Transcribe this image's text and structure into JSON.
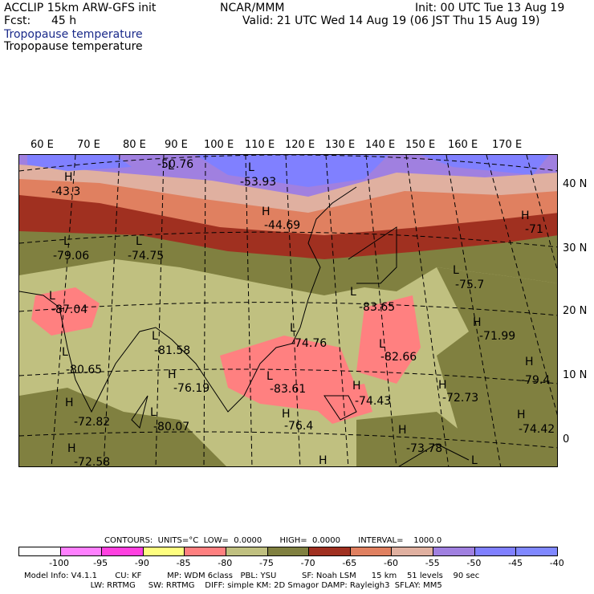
{
  "header": {
    "model": "ACCLIP 15km ARW-GFS init",
    "org": "NCAR/MMM",
    "init": "Init: 00 UTC Tue 13 Aug 19",
    "fcst_label": "Fcst:",
    "fcst_value": "45 h",
    "valid": "Valid: 21 UTC Wed 14 Aug 19 (06 JST Thu 15 Aug 19)",
    "field_title_1": "Tropopause temperature",
    "field_title_2": "Tropopause temperature"
  },
  "map": {
    "lon_labels": [
      "60 E",
      "70 E",
      "80 E",
      "90 E",
      "100 E",
      "110 E",
      "120 E",
      "130 E",
      "140 E",
      "150 E",
      "160 E",
      "170 E"
    ],
    "lat_labels": [
      "40 N",
      "30 N",
      "20 N",
      "10 N",
      "0"
    ],
    "markers": [
      {
        "type": "H",
        "value": "-43.3"
      },
      {
        "type": "L",
        "value": "-50.76"
      },
      {
        "type": "L",
        "value": "-53.93"
      },
      {
        "type": "H",
        "value": "-44.69"
      },
      {
        "type": "L",
        "value": "-79.06"
      },
      {
        "type": "L",
        "value": "-74.75"
      },
      {
        "type": "H",
        "value": "-71"
      },
      {
        "type": "L",
        "value": "-75.7"
      },
      {
        "type": "L",
        "value": "-87.04"
      },
      {
        "type": "L",
        "value": "-83.65"
      },
      {
        "type": "H",
        "value": "-71.99"
      },
      {
        "type": "L",
        "value": "-81.58"
      },
      {
        "type": "L",
        "value": "-74.76"
      },
      {
        "type": "L",
        "value": "-82.66"
      },
      {
        "type": "L",
        "value": "-80.65"
      },
      {
        "type": "H",
        "value": "-76.19"
      },
      {
        "type": "L",
        "value": "-83.61"
      },
      {
        "type": "H",
        "value": "-79.4"
      },
      {
        "type": "H",
        "value": "-74.43"
      },
      {
        "type": "H",
        "value": "-72.73"
      },
      {
        "type": "H",
        "value": "-72.82"
      },
      {
        "type": "L",
        "value": "-80.07"
      },
      {
        "type": "H",
        "value": "-76.4"
      },
      {
        "type": "H",
        "value": "-74.42"
      },
      {
        "type": "H",
        "value": "-73.78"
      },
      {
        "type": "H",
        "value": "-72.58"
      },
      {
        "type": "H",
        "value": ""
      },
      {
        "type": "L",
        "value": ""
      }
    ]
  },
  "legend": {
    "contours": "CONTOURS:  UNITS=°C  LOW=  0.0000       HIGH=  0.0000       INTERVAL=    1000.0",
    "colors": [
      "#ffffff",
      "#ff80ff",
      "#ff40e0",
      "#ffff80",
      "#ff8080",
      "#c0c080",
      "#808040",
      "#a03020",
      "#e08060",
      "#e0b0a0",
      "#a080e0",
      "#8080ff",
      "#8088ff"
    ],
    "ticks": [
      "-100",
      "-95",
      "-90",
      "-85",
      "-80",
      "-75",
      "-70",
      "-65",
      "-60",
      "-55",
      "-50",
      "-45",
      "-40",
      "°C"
    ]
  },
  "footer": {
    "line1": "Model Info: V4.1.1       CU: KF          MP: WDM 6class   PBL: YSU          SF: Noah LSM      15 km    51 levels    90 sec",
    "line2": "                          LW: RRTMG     SW: RRTMG    DIFF: simple KM: 2D Smagor DAMP: Rayleigh3  SFLAY: MM5"
  }
}
